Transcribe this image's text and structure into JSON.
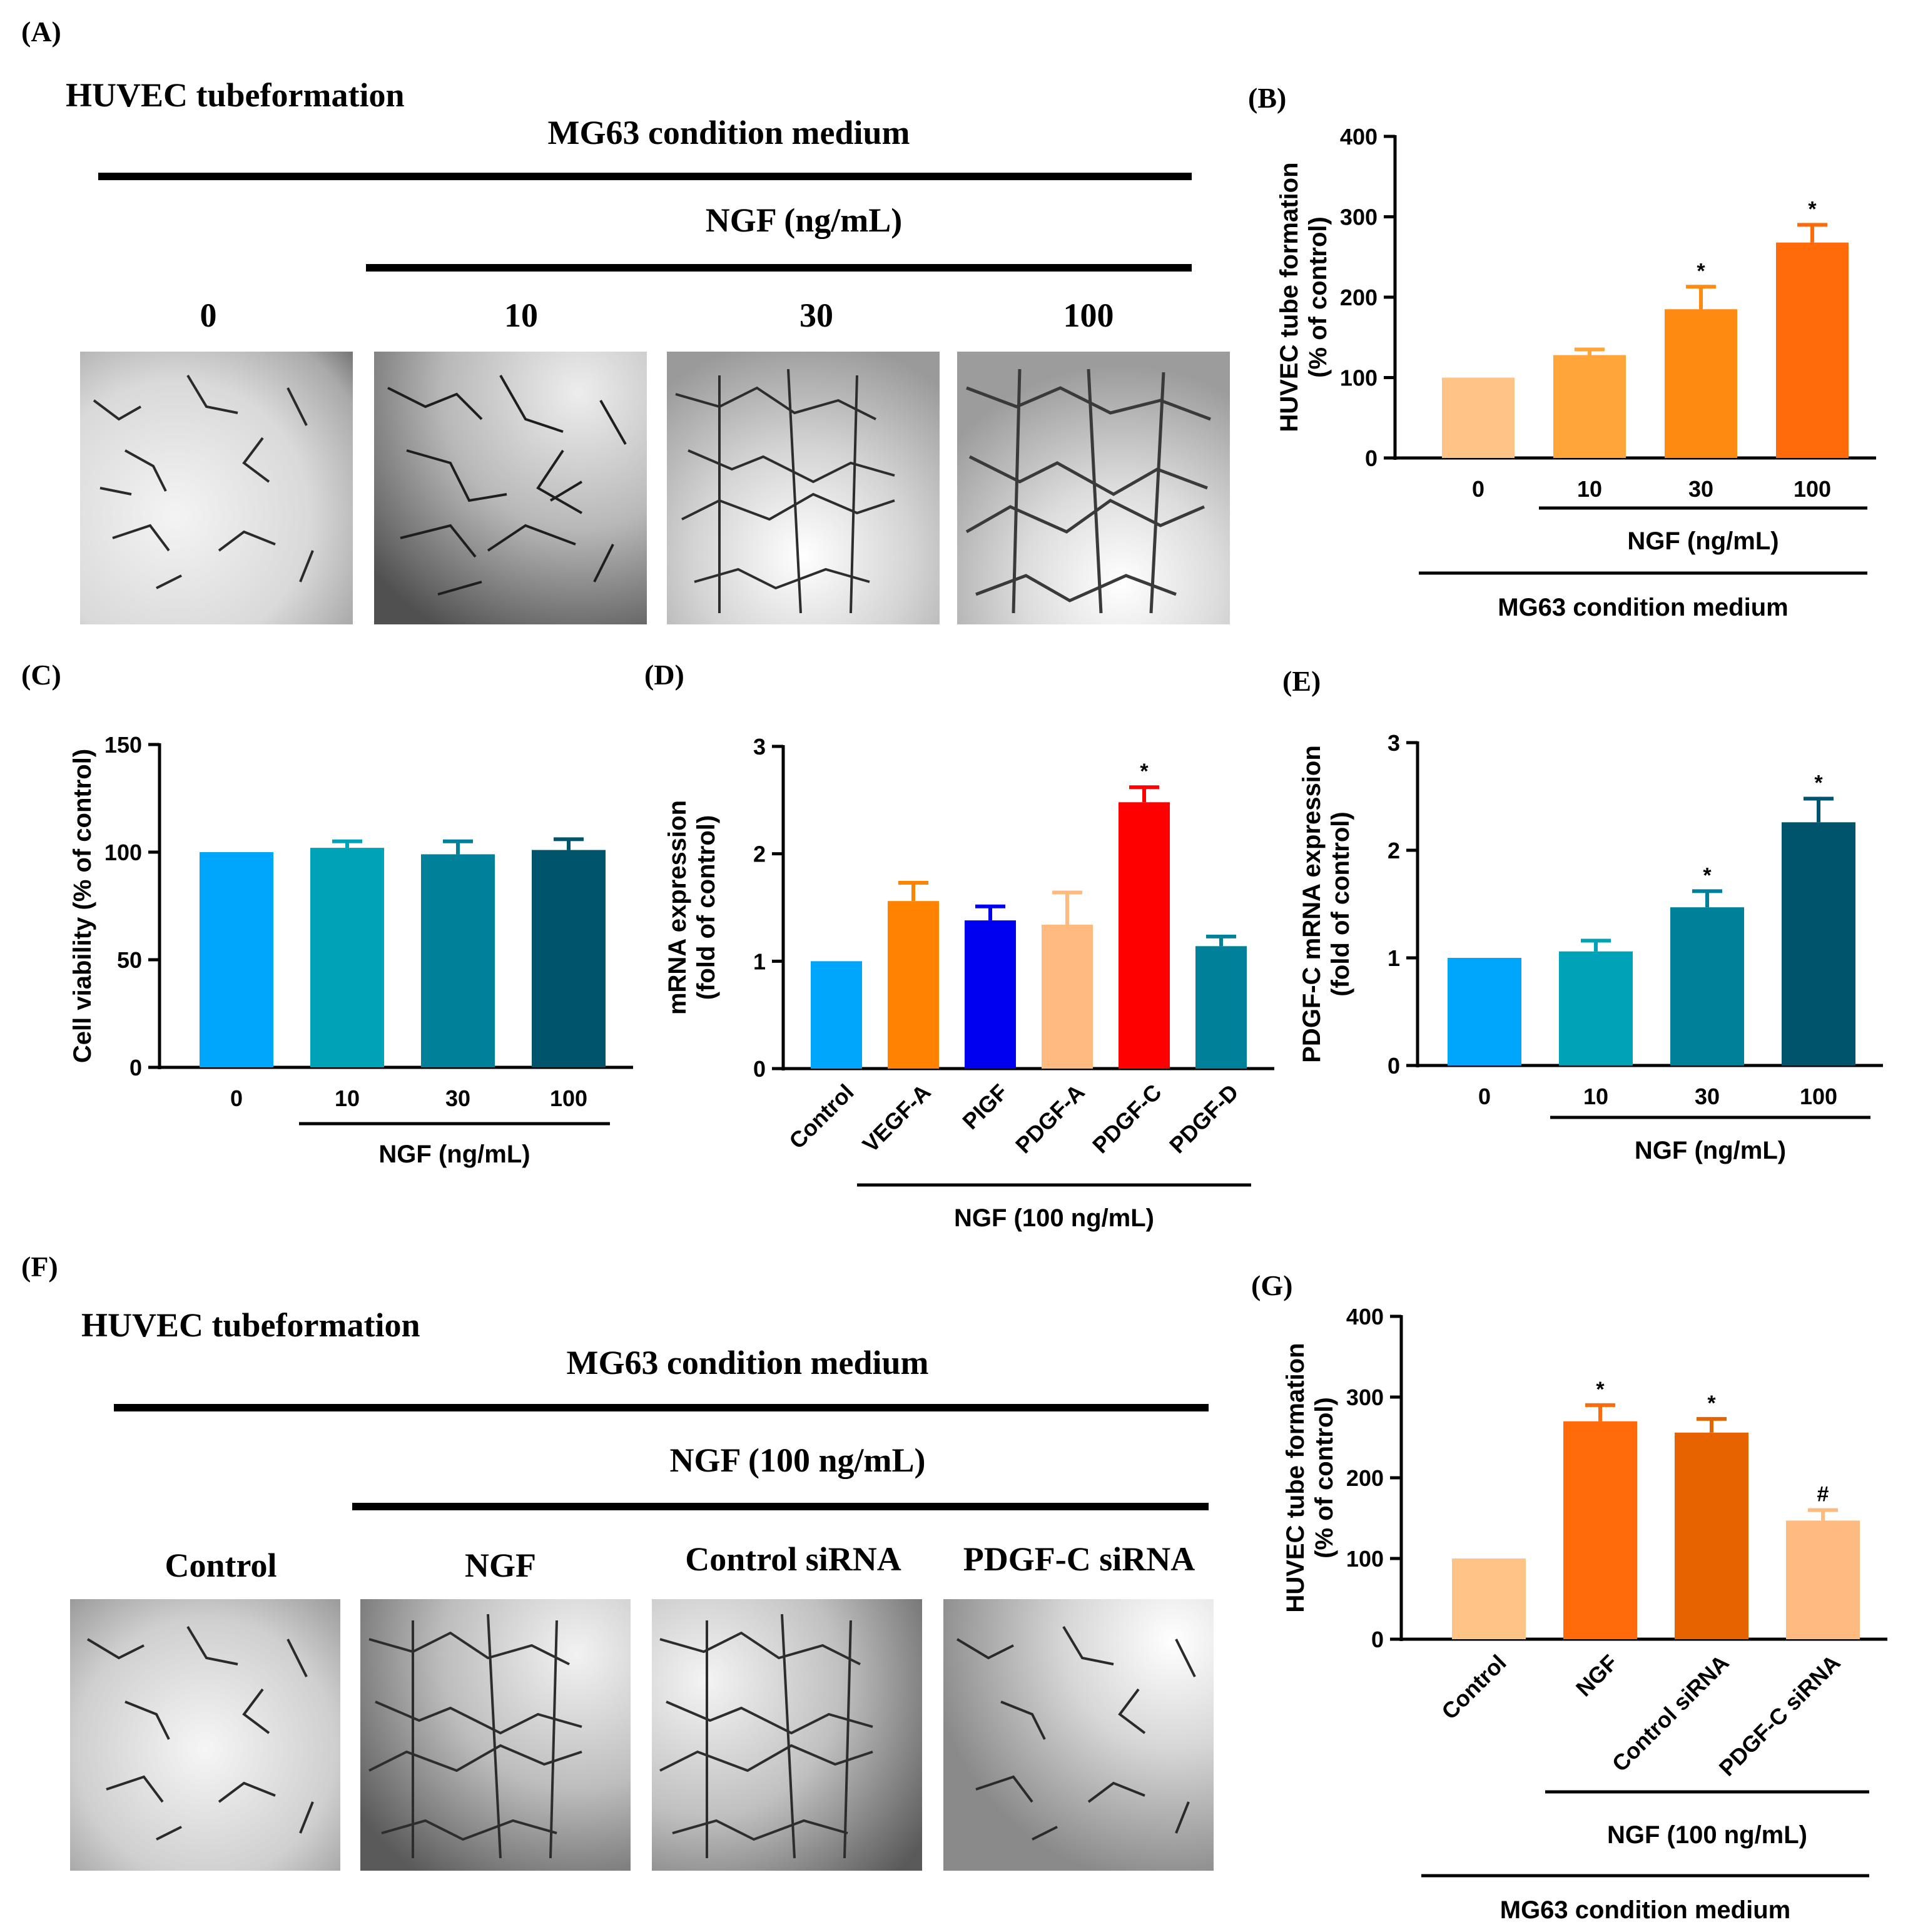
{
  "figure": {
    "panel_labels": [
      "(A)",
      "(B)",
      "(C)",
      "(D)",
      "(E)",
      "(F)",
      "(G)"
    ],
    "panel_a": {
      "title": "HUVEC tubeformation",
      "medium_label": "MG63 condition medium",
      "treatment_label": "NGF (ng/mL)",
      "image_labels": [
        "0",
        "10",
        "30",
        "100"
      ]
    },
    "panel_f": {
      "title": "HUVEC tubeformation",
      "medium_label": "MG63 condition medium",
      "treatment_label": "NGF (100 ng/mL)",
      "image_labels": [
        "Control",
        "NGF",
        "Control siRNA",
        "PDGF-C siRNA"
      ]
    }
  },
  "chart_data": [
    {
      "panel": "(B)",
      "type": "bar",
      "ylabel": "HUVEC tube formation (% of control)",
      "ylim": [
        0,
        400
      ],
      "yticks": [
        "0",
        "100",
        "200",
        "300",
        "400"
      ],
      "categories": [
        "0",
        "10",
        "30",
        "100"
      ],
      "values": [
        100,
        128,
        185,
        268
      ],
      "errors": [
        0,
        7,
        28,
        22
      ],
      "colors": [
        "#FFC485",
        "#FFA53A",
        "#FF8A12",
        "#FF6A0A"
      ],
      "marks": [
        "",
        "",
        "*",
        "*"
      ],
      "group_labels": [
        "NGF (ng/mL)",
        "MG63 condition medium"
      ]
    },
    {
      "panel": "(C)",
      "type": "bar",
      "ylabel": "Cell viability (% of control)",
      "ylim": [
        0,
        150
      ],
      "yticks": [
        "0",
        "50",
        "100",
        "150"
      ],
      "categories": [
        "0",
        "10",
        "30",
        "100"
      ],
      "values": [
        100,
        102,
        99,
        101
      ],
      "errors": [
        0,
        3,
        6,
        5
      ],
      "colors": [
        "#00A6FB",
        "#00A2B8",
        "#008199",
        "#00546C"
      ],
      "marks": [
        "",
        "",
        "",
        ""
      ],
      "group_labels": [
        "NGF (ng/mL)"
      ]
    },
    {
      "panel": "(D)",
      "type": "bar",
      "ylabel": "mRNA expression (fold of control)",
      "ylim": [
        0,
        3
      ],
      "yticks": [
        "0",
        "1",
        "2",
        "3"
      ],
      "categories": [
        "Control",
        "VEGF-A",
        "PIGF",
        "PDGF-A",
        "PDGF-C",
        "PDGF-D"
      ],
      "values": [
        1.0,
        1.56,
        1.38,
        1.34,
        2.48,
        1.14
      ],
      "errors": [
        0,
        0.17,
        0.13,
        0.3,
        0.14,
        0.09
      ],
      "colors": [
        "#00A6FB",
        "#FF8200",
        "#0000F0",
        "#FFBA80",
        "#FF0000",
        "#008199"
      ],
      "marks": [
        "",
        "",
        "",
        "",
        "*",
        ""
      ],
      "group_labels": [
        "NGF (100 ng/mL)"
      ]
    },
    {
      "panel": "(E)",
      "type": "bar",
      "ylabel": "PDGF-C mRNA expression (fold of control)",
      "ylim": [
        0,
        3
      ],
      "yticks": [
        "0",
        "1",
        "2",
        "3"
      ],
      "categories": [
        "0",
        "10",
        "30",
        "100"
      ],
      "values": [
        1.0,
        1.06,
        1.47,
        2.26
      ],
      "errors": [
        0,
        0.1,
        0.15,
        0.22
      ],
      "colors": [
        "#00A6FB",
        "#00A2B8",
        "#008199",
        "#00546C"
      ],
      "marks": [
        "",
        "",
        "*",
        "*"
      ],
      "group_labels": [
        "NGF (ng/mL)"
      ]
    },
    {
      "panel": "(G)",
      "type": "bar",
      "ylabel": "HUVEC tube formation (% of control)",
      "ylim": [
        0,
        400
      ],
      "yticks": [
        "0",
        "100",
        "200",
        "300",
        "400"
      ],
      "categories": [
        "Control",
        "NGF",
        "Control siRNA",
        "PDGF-C siRNA"
      ],
      "values": [
        100,
        270,
        256,
        147
      ],
      "errors": [
        0,
        20,
        17,
        13
      ],
      "colors": [
        "#FFC485",
        "#FF6A0A",
        "#E66300",
        "#FFBA80"
      ],
      "marks": [
        "",
        "*",
        "*",
        "#"
      ],
      "group_labels": [
        "NGF (100 ng/mL)",
        "MG63 condition medium"
      ]
    }
  ]
}
